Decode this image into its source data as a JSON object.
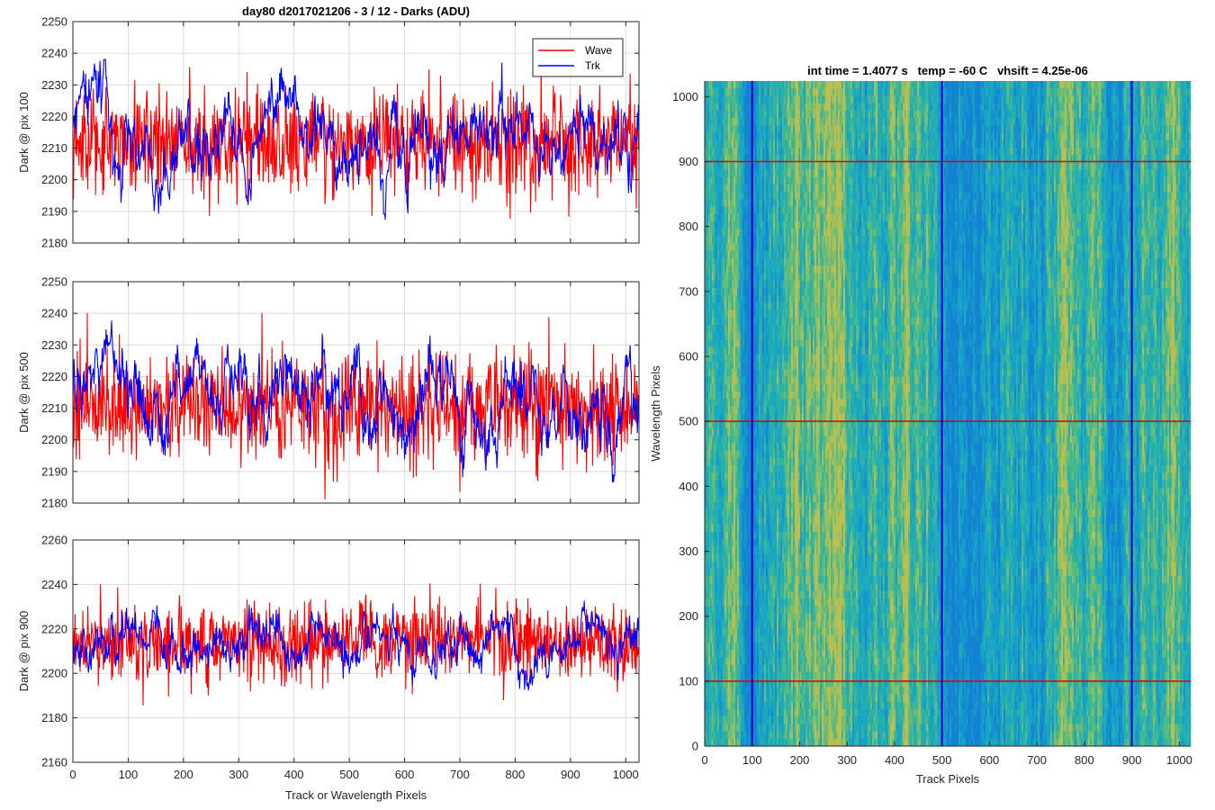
{
  "chart_data": [
    {
      "type": "line",
      "title": "day80 d2017021206 - 3 / 12 - Darks (ADU)",
      "xlabel": "",
      "ylabel": "Dark @ pix 100",
      "xlim": [
        0,
        1024
      ],
      "ylim": [
        2180,
        2250
      ],
      "xticks": [
        0,
        100,
        200,
        300,
        400,
        500,
        600,
        700,
        800,
        900,
        1000
      ],
      "yticks": [
        2180,
        2190,
        2200,
        2210,
        2220,
        2230,
        2240,
        2250
      ],
      "xtick_labels_visible": false,
      "grid": true,
      "legend": {
        "placement": "top-right",
        "entries": [
          "Wave",
          "Trk"
        ]
      },
      "series": [
        {
          "name": "Wave",
          "color": "#ff0000",
          "mean": 2212,
          "min": 2180,
          "max": 2247
        },
        {
          "name": "Trk",
          "color": "#0000ff",
          "mean": 2214,
          "min": 2184,
          "max": 2238
        }
      ]
    },
    {
      "type": "line",
      "title": "",
      "xlabel": "",
      "ylabel": "Dark @ pix 500",
      "xlim": [
        0,
        1024
      ],
      "ylim": [
        2180,
        2250
      ],
      "xticks": [
        0,
        100,
        200,
        300,
        400,
        500,
        600,
        700,
        800,
        900,
        1000
      ],
      "yticks": [
        2180,
        2190,
        2200,
        2210,
        2220,
        2230,
        2240,
        2250
      ],
      "xtick_labels_visible": false,
      "grid": true,
      "series": [
        {
          "name": "Wave",
          "color": "#ff0000",
          "mean": 2211,
          "min": 2180,
          "max": 2240
        },
        {
          "name": "Trk",
          "color": "#0000ff",
          "mean": 2216,
          "min": 2185,
          "max": 2244
        }
      ]
    },
    {
      "type": "line",
      "title": "",
      "xlabel": "Track or Wavelength Pixels",
      "ylabel": "Dark @ pix 900",
      "xlim": [
        0,
        1024
      ],
      "ylim": [
        2160,
        2260
      ],
      "xticks": [
        0,
        100,
        200,
        300,
        400,
        500,
        600,
        700,
        800,
        900,
        1000
      ],
      "yticks": [
        2160,
        2180,
        2200,
        2220,
        2240,
        2260
      ],
      "xtick_labels_visible": true,
      "grid": true,
      "series": [
        {
          "name": "Wave",
          "color": "#ff0000",
          "mean": 2214,
          "min": 2179,
          "max": 2244
        },
        {
          "name": "Trk",
          "color": "#0000ff",
          "mean": 2214,
          "min": 2183,
          "max": 2240
        }
      ]
    },
    {
      "type": "heatmap",
      "title": "int time = 1.4077 s   temp = -60 C   vhsift = 4.25e-06",
      "xlabel": "Track Pixels",
      "ylabel": "Wavelength Pixels",
      "xlim": [
        0,
        1024
      ],
      "ylim": [
        0,
        1024
      ],
      "xticks": [
        0,
        100,
        200,
        300,
        400,
        500,
        600,
        700,
        800,
        900,
        1000
      ],
      "yticks": [
        0,
        100,
        200,
        300,
        400,
        500,
        600,
        700,
        800,
        900,
        1000
      ],
      "colormap": "parula",
      "vertical_lines": {
        "color": "#0000cc",
        "x": [
          100,
          500,
          900
        ]
      },
      "horizontal_lines": {
        "color": "#dd0000",
        "y": [
          100,
          500,
          900
        ]
      }
    }
  ]
}
